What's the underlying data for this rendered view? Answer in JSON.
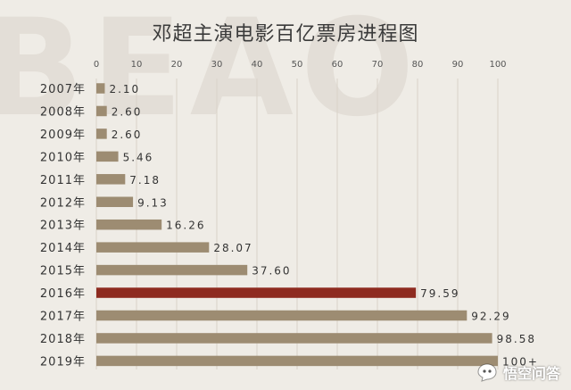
{
  "chart_data": {
    "type": "bar",
    "orientation": "horizontal",
    "title": "邓超主演电影百亿票房进程图",
    "categories": [
      "2007年",
      "2008年",
      "2009年",
      "2010年",
      "2011年",
      "2012年",
      "2013年",
      "2014年",
      "2015年",
      "2016年",
      "2017年",
      "2018年",
      "2019年"
    ],
    "values": [
      2.1,
      2.6,
      2.6,
      5.46,
      7.18,
      9.13,
      16.26,
      28.07,
      37.6,
      79.59,
      92.29,
      98.58,
      100
    ],
    "value_labels": [
      "2.10",
      "2.60",
      "2.60",
      "5.46",
      "7.18",
      "9.13",
      "16.26",
      "28.07",
      "37.60",
      "79.59",
      "92.29",
      "98.58",
      "100+"
    ],
    "xlim": [
      0,
      100
    ],
    "xticks": [
      0,
      10,
      20,
      30,
      40,
      50,
      60,
      70,
      80,
      90,
      100
    ],
    "x_axis_position": "top",
    "grid": true,
    "highlight_index": 9,
    "colors": {
      "bar": "#9d8c72",
      "highlight": "#8e2b20",
      "grid": "#d8d2c8",
      "text": "#333333"
    }
  },
  "background_text": "BEAO",
  "watermark": {
    "text": "悟空问答",
    "icon": "wukong-logo-icon"
  }
}
